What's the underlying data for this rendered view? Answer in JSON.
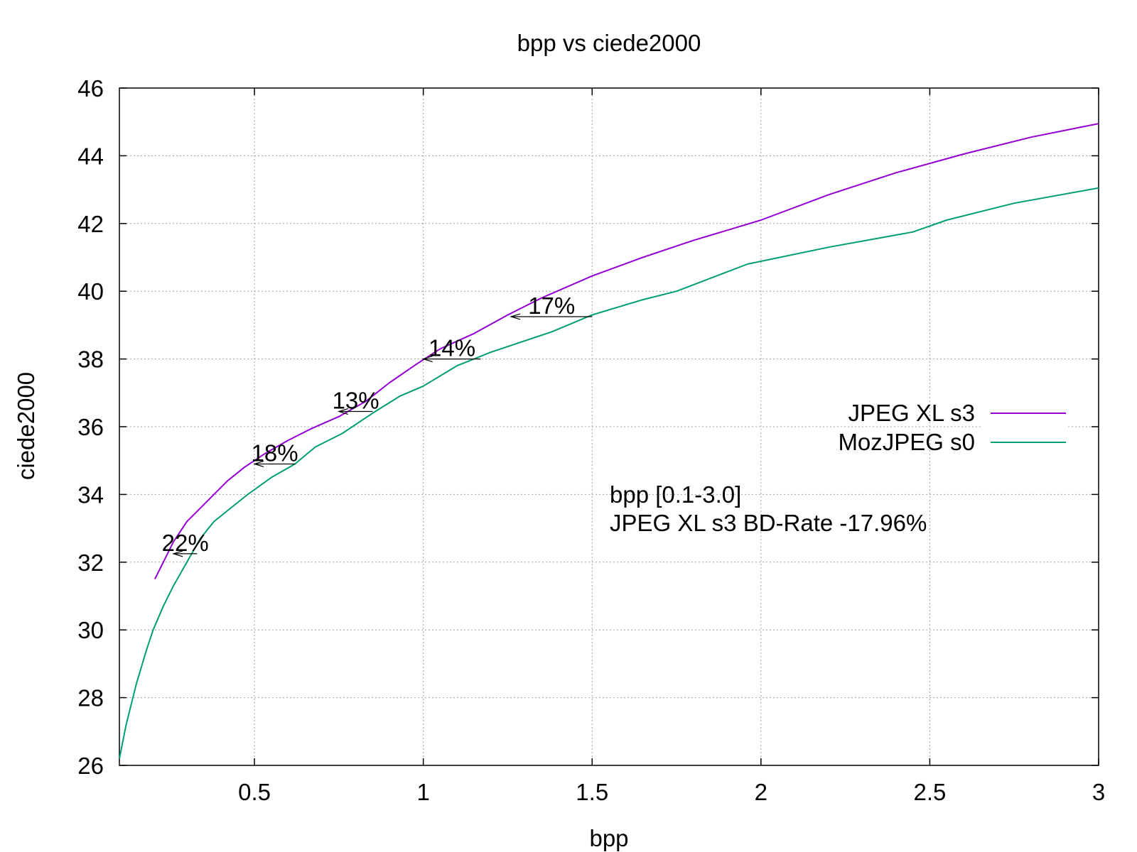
{
  "chart_data": {
    "type": "line",
    "title": "bpp vs ciede2000",
    "xlabel": "bpp",
    "ylabel": "ciede2000",
    "xlim": [
      0.1,
      3.0
    ],
    "ylim": [
      26,
      46
    ],
    "xticks": [
      0.5,
      1,
      1.5,
      2,
      2.5,
      3
    ],
    "xtick_labels": [
      "0.5",
      "1",
      "1.5",
      "2",
      "2.5",
      "3"
    ],
    "yticks": [
      26,
      28,
      30,
      32,
      34,
      36,
      38,
      40,
      42,
      44,
      46
    ],
    "ytick_labels": [
      "26",
      "28",
      "30",
      "32",
      "34",
      "36",
      "38",
      "40",
      "42",
      "44",
      "46"
    ],
    "grid": true,
    "legend_position": "right",
    "series": [
      {
        "name": "JPEG XL s3",
        "color": "#9400d3",
        "points": [
          [
            0.205,
            31.5
          ],
          [
            0.23,
            32.0
          ],
          [
            0.26,
            32.6
          ],
          [
            0.3,
            33.2
          ],
          [
            0.33,
            33.5
          ],
          [
            0.37,
            33.9
          ],
          [
            0.42,
            34.4
          ],
          [
            0.47,
            34.8
          ],
          [
            0.53,
            35.2
          ],
          [
            0.6,
            35.6
          ],
          [
            0.67,
            35.95
          ],
          [
            0.75,
            36.3
          ],
          [
            0.83,
            36.75
          ],
          [
            0.9,
            37.3
          ],
          [
            0.98,
            37.85
          ],
          [
            1.05,
            38.3
          ],
          [
            1.15,
            38.75
          ],
          [
            1.25,
            39.3
          ],
          [
            1.35,
            39.8
          ],
          [
            1.5,
            40.45
          ],
          [
            1.65,
            41.0
          ],
          [
            1.8,
            41.5
          ],
          [
            2.0,
            42.1
          ],
          [
            2.2,
            42.85
          ],
          [
            2.4,
            43.5
          ],
          [
            2.6,
            44.05
          ],
          [
            2.8,
            44.55
          ],
          [
            3.0,
            44.95
          ]
        ]
      },
      {
        "name": "MozJPEG s0",
        "color": "#009e73",
        "points": [
          [
            0.1,
            26.2
          ],
          [
            0.12,
            27.2
          ],
          [
            0.15,
            28.4
          ],
          [
            0.18,
            29.4
          ],
          [
            0.2,
            30.0
          ],
          [
            0.23,
            30.7
          ],
          [
            0.26,
            31.3
          ],
          [
            0.3,
            32.0
          ],
          [
            0.34,
            32.7
          ],
          [
            0.38,
            33.2
          ],
          [
            0.43,
            33.6
          ],
          [
            0.48,
            34.0
          ],
          [
            0.55,
            34.5
          ],
          [
            0.62,
            34.9
          ],
          [
            0.68,
            35.4
          ],
          [
            0.76,
            35.8
          ],
          [
            0.85,
            36.4
          ],
          [
            0.93,
            36.9
          ],
          [
            1.0,
            37.2
          ],
          [
            1.1,
            37.8
          ],
          [
            1.2,
            38.2
          ],
          [
            1.38,
            38.8
          ],
          [
            1.5,
            39.3
          ],
          [
            1.65,
            39.75
          ],
          [
            1.75,
            40.0
          ],
          [
            1.96,
            40.8
          ],
          [
            2.2,
            41.3
          ],
          [
            2.45,
            41.75
          ],
          [
            2.55,
            42.1
          ],
          [
            2.75,
            42.6
          ],
          [
            3.0,
            43.05
          ]
        ]
      }
    ],
    "annotations": [
      {
        "label": "22%",
        "y": 32.25,
        "x_from": 0.33,
        "x_to": 0.26
      },
      {
        "label": "18%",
        "y": 34.9,
        "x_from": 0.62,
        "x_to": 0.5
      },
      {
        "label": "13%",
        "y": 36.45,
        "x_from": 0.85,
        "x_to": 0.75
      },
      {
        "label": "14%",
        "y": 38.0,
        "x_from": 1.17,
        "x_to": 1.0
      },
      {
        "label": "17%",
        "y": 39.25,
        "x_from": 1.5,
        "x_to": 1.26
      }
    ],
    "notes": [
      "bpp [0.1-3.0]",
      "JPEG XL s3 BD-Rate -17.96%"
    ],
    "notes_color": "#00ff00"
  }
}
